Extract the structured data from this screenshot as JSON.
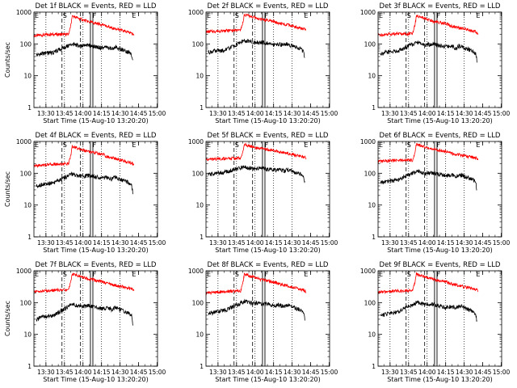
{
  "chart_data": [
    {
      "type": "line",
      "title": "Det 1f BLACK = Events, RED = LLD",
      "xlabel": "Start Time (15-Aug-10 13:20:20)",
      "ylabel": "Counts/sec",
      "x_ticks": [
        "13:30",
        "13:45",
        "14:00",
        "14:15",
        "14:30",
        "14:45",
        "15:00"
      ],
      "y_ticks": [
        "1",
        "10",
        "100",
        "1000"
      ],
      "ylim": [
        1,
        1000
      ],
      "y_scale": "log",
      "series": [
        {
          "color": "#ff0000",
          "x": [
            0,
            13,
            28,
            30,
            31,
            44,
            55,
            57,
            58,
            66,
            79,
            81
          ],
          "y": [
            180,
            200,
            200,
            400,
            750,
            500,
            410,
            400,
            360,
            300,
            220,
            200
          ]
        },
        {
          "color": "#000000",
          "x": [
            2,
            7,
            13,
            16,
            31,
            38,
            44,
            55,
            60,
            63,
            66,
            70,
            77,
            79,
            80
          ],
          "y": [
            45,
            50,
            52,
            55,
            100,
            85,
            90,
            75,
            80,
            70,
            82,
            70,
            55,
            45,
            28
          ]
        }
      ],
      "markers": [
        {
          "label": "E",
          "x": 0
        },
        {
          "label": "S",
          "x": 22.7
        },
        {
          "label": "F",
          "x": 46.7
        },
        {
          "label": "E",
          "x": 78.7
        }
      ],
      "dotted_lines": [
        9.7,
        24.7,
        39.7,
        54.7,
        69.7
      ],
      "dashed_lines": [
        22.7,
        37.7
      ],
      "solid_lines": [
        45.7,
        47.7
      ]
    },
    {
      "type": "line",
      "title": "Det 2f BLACK = Events, RED = LLD",
      "xlabel": "Start Time (15-Aug-10 13:20:20)",
      "ylabel": "",
      "x_ticks": [
        "13:30",
        "13:45",
        "14:00",
        "14:15",
        "14:30",
        "14:45",
        "15:00"
      ],
      "y_ticks": [
        "1",
        "10",
        "100",
        "1000"
      ],
      "ylim": [
        1,
        1000
      ],
      "y_scale": "log",
      "series": [
        {
          "color": "#ff0000",
          "x": [
            0,
            13,
            28,
            30,
            31,
            44,
            55,
            57,
            58,
            66,
            79,
            81
          ],
          "y": [
            240,
            260,
            270,
            500,
            850,
            600,
            500,
            480,
            450,
            400,
            300,
            270
          ]
        },
        {
          "color": "#000000",
          "x": [
            2,
            7,
            13,
            16,
            31,
            38,
            44,
            55,
            60,
            63,
            66,
            70,
            77,
            79,
            80
          ],
          "y": [
            55,
            60,
            62,
            65,
            130,
            110,
            115,
            95,
            100,
            90,
            100,
            85,
            70,
            55,
            35
          ]
        }
      ],
      "markers": [
        {
          "label": "E",
          "x": 0
        },
        {
          "label": "S",
          "x": 22.7
        },
        {
          "label": "F",
          "x": 46.7
        },
        {
          "label": "E",
          "x": 78.7
        }
      ],
      "dotted_lines": [
        9.7,
        24.7,
        39.7,
        54.7,
        69.7
      ],
      "dashed_lines": [
        22.7,
        37.7
      ],
      "solid_lines": [
        45.7,
        47.7
      ]
    },
    {
      "type": "line",
      "title": "Det 3f BLACK = Events, RED = LLD",
      "xlabel": "Start Time (15-Aug-10 13:20:20)",
      "ylabel": "",
      "x_ticks": [
        "13:30",
        "13:45",
        "14:00",
        "14:15",
        "14:30",
        "14:45",
        "15:00"
      ],
      "y_ticks": [
        "1",
        "10",
        "100",
        "1000"
      ],
      "ylim": [
        1,
        1000
      ],
      "y_scale": "log",
      "series": [
        {
          "color": "#ff0000",
          "x": [
            0,
            13,
            28,
            30,
            31,
            44,
            55,
            57,
            58,
            66,
            79,
            81
          ],
          "y": [
            190,
            210,
            210,
            420,
            780,
            520,
            430,
            410,
            380,
            320,
            240,
            210
          ]
        },
        {
          "color": "#000000",
          "x": [
            2,
            7,
            13,
            16,
            31,
            38,
            44,
            55,
            60,
            63,
            66,
            70,
            77,
            79,
            80
          ],
          "y": [
            50,
            55,
            58,
            60,
            110,
            95,
            100,
            80,
            85,
            75,
            88,
            75,
            60,
            50,
            30
          ]
        }
      ],
      "markers": [
        {
          "label": "E",
          "x": 0
        },
        {
          "label": "S",
          "x": 22.7
        },
        {
          "label": "F",
          "x": 46.7
        },
        {
          "label": "E",
          "x": 78.7
        }
      ],
      "dotted_lines": [
        9.7,
        24.7,
        39.7,
        54.7,
        69.7
      ],
      "dashed_lines": [
        22.7,
        37.7
      ],
      "solid_lines": [
        45.7,
        47.7
      ]
    },
    {
      "type": "line",
      "title": "Det 4f BLACK = Events, RED = LLD",
      "xlabel": "Start Time (15-Aug-10 13:20:20)",
      "ylabel": "Counts/sec",
      "x_ticks": [
        "13:30",
        "13:45",
        "14:00",
        "14:15",
        "14:30",
        "14:45",
        "15:00"
      ],
      "y_ticks": [
        "1",
        "10",
        "100",
        "1000"
      ],
      "ylim": [
        1,
        1000
      ],
      "y_scale": "log",
      "series": [
        {
          "color": "#ff0000",
          "x": [
            0,
            13,
            28,
            30,
            31,
            44,
            55,
            57,
            58,
            66,
            79,
            81
          ],
          "y": [
            170,
            190,
            200,
            400,
            700,
            480,
            400,
            380,
            350,
            290,
            210,
            190
          ]
        },
        {
          "color": "#000000",
          "x": [
            2,
            7,
            13,
            16,
            31,
            38,
            44,
            55,
            60,
            63,
            66,
            70,
            77,
            79,
            80
          ],
          "y": [
            40,
            45,
            48,
            50,
            95,
            80,
            85,
            70,
            75,
            65,
            78,
            65,
            50,
            42,
            25
          ]
        }
      ],
      "markers": [
        {
          "label": "E",
          "x": 0
        },
        {
          "label": "S",
          "x": 22.7
        },
        {
          "label": "F",
          "x": 46.7
        },
        {
          "label": "E",
          "x": 78.7
        }
      ],
      "dotted_lines": [
        9.7,
        24.7,
        39.7,
        54.7,
        69.7
      ],
      "dashed_lines": [
        22.7,
        37.7
      ],
      "solid_lines": [
        45.7,
        47.7
      ]
    },
    {
      "type": "line",
      "title": "Det 5f BLACK = Events, RED = LLD",
      "xlabel": "Start Time (15-Aug-10 13:20:20)",
      "ylabel": "",
      "x_ticks": [
        "13:30",
        "13:45",
        "14:00",
        "14:15",
        "14:30",
        "14:45",
        "15:00"
      ],
      "y_ticks": [
        "1",
        "10",
        "100",
        "1000"
      ],
      "ylim": [
        1,
        1000
      ],
      "y_scale": "log",
      "series": [
        {
          "color": "#ff0000",
          "x": [
            0,
            13,
            28,
            30,
            31,
            44,
            55,
            57,
            58,
            66,
            79,
            81
          ],
          "y": [
            270,
            290,
            300,
            520,
            800,
            600,
            520,
            500,
            470,
            420,
            330,
            300
          ]
        },
        {
          "color": "#000000",
          "x": [
            2,
            7,
            13,
            16,
            31,
            38,
            44,
            55,
            60,
            63,
            66,
            70,
            77,
            79,
            80
          ],
          "y": [
            90,
            100,
            105,
            110,
            160,
            140,
            145,
            125,
            130,
            120,
            130,
            115,
            95,
            80,
            50
          ]
        }
      ],
      "markers": [
        {
          "label": "E",
          "x": 0
        },
        {
          "label": "S",
          "x": 22.7
        },
        {
          "label": "F",
          "x": 46.7
        },
        {
          "label": "E",
          "x": 78.7
        }
      ],
      "dotted_lines": [
        9.7,
        24.7,
        39.7,
        54.7,
        69.7
      ],
      "dashed_lines": [
        22.7,
        37.7
      ],
      "solid_lines": [
        45.7,
        47.7
      ]
    },
    {
      "type": "line",
      "title": "Det 6f BLACK = Events, RED = LLD",
      "xlabel": "Start Time (15-Aug-10 13:20:20)",
      "ylabel": "",
      "x_ticks": [
        "13:30",
        "13:45",
        "14:00",
        "14:15",
        "14:30",
        "14:45",
        "15:00"
      ],
      "y_ticks": [
        "1",
        "10",
        "100",
        "1000"
      ],
      "ylim": [
        1,
        1000
      ],
      "y_scale": "log",
      "series": [
        {
          "color": "#ff0000",
          "x": [
            0,
            13,
            28,
            30,
            31,
            44,
            55,
            57,
            58,
            66,
            79,
            81
          ],
          "y": [
            240,
            250,
            260,
            480,
            820,
            580,
            480,
            460,
            430,
            380,
            300,
            270
          ]
        },
        {
          "color": "#000000",
          "x": [
            2,
            7,
            13,
            16,
            31,
            38,
            44,
            55,
            60,
            63,
            66,
            70,
            77,
            79,
            80
          ],
          "y": [
            50,
            55,
            58,
            62,
            115,
            100,
            105,
            85,
            90,
            80,
            92,
            80,
            62,
            50,
            30
          ]
        }
      ],
      "markers": [
        {
          "label": "E",
          "x": 0
        },
        {
          "label": "S",
          "x": 22.7
        },
        {
          "label": "F",
          "x": 46.7
        },
        {
          "label": "E",
          "x": 78.7
        }
      ],
      "dotted_lines": [
        9.7,
        24.7,
        39.7,
        54.7,
        69.7
      ],
      "dashed_lines": [
        22.7,
        37.7
      ],
      "solid_lines": [
        45.7,
        47.7
      ]
    },
    {
      "type": "line",
      "title": "Det 7f BLACK = Events, RED = LLD",
      "xlabel": "Start Time (15-Aug-10 13:20:20)",
      "ylabel": "Counts/sec",
      "x_ticks": [
        "13:30",
        "13:45",
        "14:00",
        "14:15",
        "14:30",
        "14:45",
        "15:00"
      ],
      "y_ticks": [
        "1",
        "10",
        "100",
        "1000"
      ],
      "ylim": [
        1,
        1000
      ],
      "y_scale": "log",
      "series": [
        {
          "color": "#ff0000",
          "x": [
            0,
            13,
            28,
            30,
            31,
            44,
            55,
            57,
            58,
            66,
            79,
            81
          ],
          "y": [
            220,
            240,
            250,
            480,
            800,
            560,
            460,
            440,
            410,
            350,
            270,
            240
          ]
        },
        {
          "color": "#000000",
          "x": [
            2,
            7,
            13,
            16,
            31,
            38,
            44,
            55,
            60,
            63,
            66,
            70,
            77,
            79,
            80
          ],
          "y": [
            30,
            35,
            38,
            40,
            90,
            75,
            80,
            65,
            70,
            60,
            72,
            60,
            45,
            38,
            22
          ]
        }
      ],
      "markers": [
        {
          "label": "E",
          "x": 0
        },
        {
          "label": "S",
          "x": 22.7
        },
        {
          "label": "F",
          "x": 46.7
        },
        {
          "label": "E",
          "x": 78.7
        }
      ],
      "dotted_lines": [
        9.7,
        24.7,
        39.7,
        54.7,
        69.7
      ],
      "dashed_lines": [
        22.7,
        37.7
      ],
      "solid_lines": [
        45.7,
        47.7
      ]
    },
    {
      "type": "line",
      "title": "Det 8f BLACK = Events, RED = LLD",
      "xlabel": "Start Time (15-Aug-10 13:20:20)",
      "ylabel": "",
      "x_ticks": [
        "13:30",
        "13:45",
        "14:00",
        "14:15",
        "14:30",
        "14:45",
        "15:00"
      ],
      "y_ticks": [
        "1",
        "10",
        "100",
        "1000"
      ],
      "ylim": [
        1,
        1000
      ],
      "y_scale": "log",
      "series": [
        {
          "color": "#ff0000",
          "x": [
            0,
            13,
            28,
            30,
            31,
            44,
            55,
            57,
            58,
            66,
            79,
            81
          ],
          "y": [
            200,
            220,
            230,
            450,
            780,
            540,
            440,
            420,
            390,
            330,
            250,
            220
          ]
        },
        {
          "color": "#000000",
          "x": [
            2,
            7,
            13,
            16,
            31,
            38,
            44,
            55,
            60,
            63,
            66,
            70,
            77,
            79,
            80
          ],
          "y": [
            45,
            50,
            55,
            58,
            110,
            95,
            98,
            80,
            85,
            75,
            85,
            72,
            58,
            48,
            28
          ]
        }
      ],
      "markers": [
        {
          "label": "E",
          "x": 0
        },
        {
          "label": "S",
          "x": 22.7
        },
        {
          "label": "F",
          "x": 46.7
        },
        {
          "label": "E",
          "x": 78.7
        }
      ],
      "dotted_lines": [
        9.7,
        24.7,
        39.7,
        54.7,
        69.7
      ],
      "dashed_lines": [
        22.7,
        37.7
      ],
      "solid_lines": [
        45.7,
        47.7
      ]
    },
    {
      "type": "line",
      "title": "Det 9f BLACK = Events, RED = LLD",
      "xlabel": "Start Time (15-Aug-10 13:20:20)",
      "ylabel": "",
      "x_ticks": [
        "13:30",
        "13:45",
        "14:00",
        "14:15",
        "14:30",
        "14:45",
        "15:00"
      ],
      "y_ticks": [
        "1",
        "10",
        "100",
        "1000"
      ],
      "ylim": [
        1,
        1000
      ],
      "y_scale": "log",
      "series": [
        {
          "color": "#ff0000",
          "x": [
            0,
            13,
            28,
            30,
            31,
            44,
            55,
            57,
            58,
            66,
            79,
            81
          ],
          "y": [
            210,
            230,
            240,
            460,
            790,
            550,
            450,
            430,
            400,
            340,
            260,
            230
          ]
        },
        {
          "color": "#000000",
          "x": [
            2,
            7,
            13,
            16,
            31,
            38,
            44,
            55,
            60,
            63,
            66,
            70,
            77,
            79,
            80
          ],
          "y": [
            40,
            45,
            48,
            52,
            100,
            85,
            90,
            72,
            78,
            68,
            80,
            68,
            52,
            44,
            26
          ]
        }
      ],
      "markers": [
        {
          "label": "E",
          "x": 0
        },
        {
          "label": "S",
          "x": 22.7
        },
        {
          "label": "F",
          "x": 46.7
        },
        {
          "label": "E",
          "x": 78.7
        }
      ],
      "dotted_lines": [
        9.7,
        24.7,
        39.7,
        54.7,
        69.7
      ],
      "dashed_lines": [
        22.7,
        37.7
      ],
      "solid_lines": [
        45.7,
        47.7
      ]
    }
  ]
}
